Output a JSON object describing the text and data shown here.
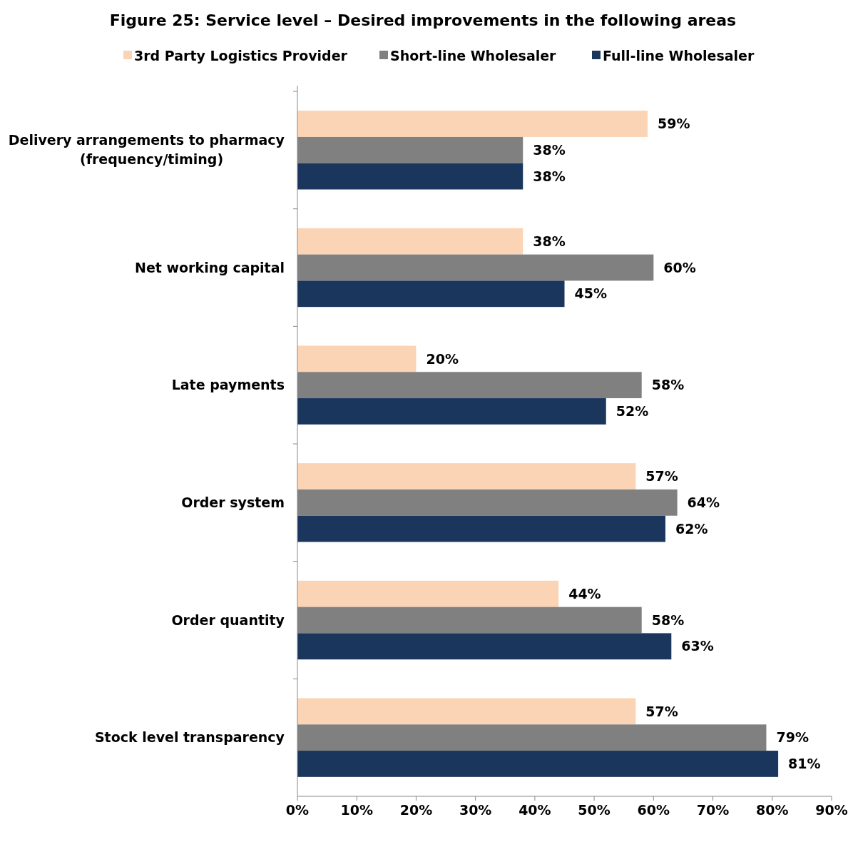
{
  "chart_data": {
    "type": "bar",
    "orientation": "horizontal",
    "title": "Figure 25: Service level – Desired improvements in the following areas",
    "categories": [
      "Delivery arrangements to pharmacy (frequency/timing)",
      "Net working capital",
      "Late payments",
      "Order system",
      "Order quantity",
      "Stock level transparency"
    ],
    "series": [
      {
        "name": "3rd Party Logistics Provider",
        "color": "#fad4b4",
        "values": [
          59,
          38,
          20,
          57,
          44,
          57
        ],
        "value_labels": [
          "59%",
          "38%",
          "20%",
          "57%",
          "44%",
          "57%"
        ]
      },
      {
        "name": "Short-line Wholesaler",
        "color": "#808080",
        "values": [
          38,
          60,
          58,
          64,
          58,
          79
        ],
        "value_labels": [
          "38%",
          "60%",
          "58%",
          "64%",
          "58%",
          "79%"
        ]
      },
      {
        "name": "Full-line Wholesaler",
        "color": "#1a365d",
        "values": [
          38,
          45,
          52,
          62,
          63,
          81
        ],
        "value_labels": [
          "38%",
          "45%",
          "52%",
          "62%",
          "63%",
          "81%"
        ]
      }
    ],
    "xlim": [
      0,
      90
    ],
    "xticks": [
      {
        "value": 0,
        "label": "0%"
      },
      {
        "value": 10,
        "label": "10%"
      },
      {
        "value": 20,
        "label": "20%"
      },
      {
        "value": 30,
        "label": "30%"
      },
      {
        "value": 40,
        "label": "40%"
      },
      {
        "value": 50,
        "label": "50%"
      },
      {
        "value": 60,
        "label": "60%"
      },
      {
        "value": 70,
        "label": "70%"
      },
      {
        "value": 80,
        "label": "80%"
      },
      {
        "value": 90,
        "label": "90%"
      }
    ],
    "legend": "top",
    "grid": false
  }
}
